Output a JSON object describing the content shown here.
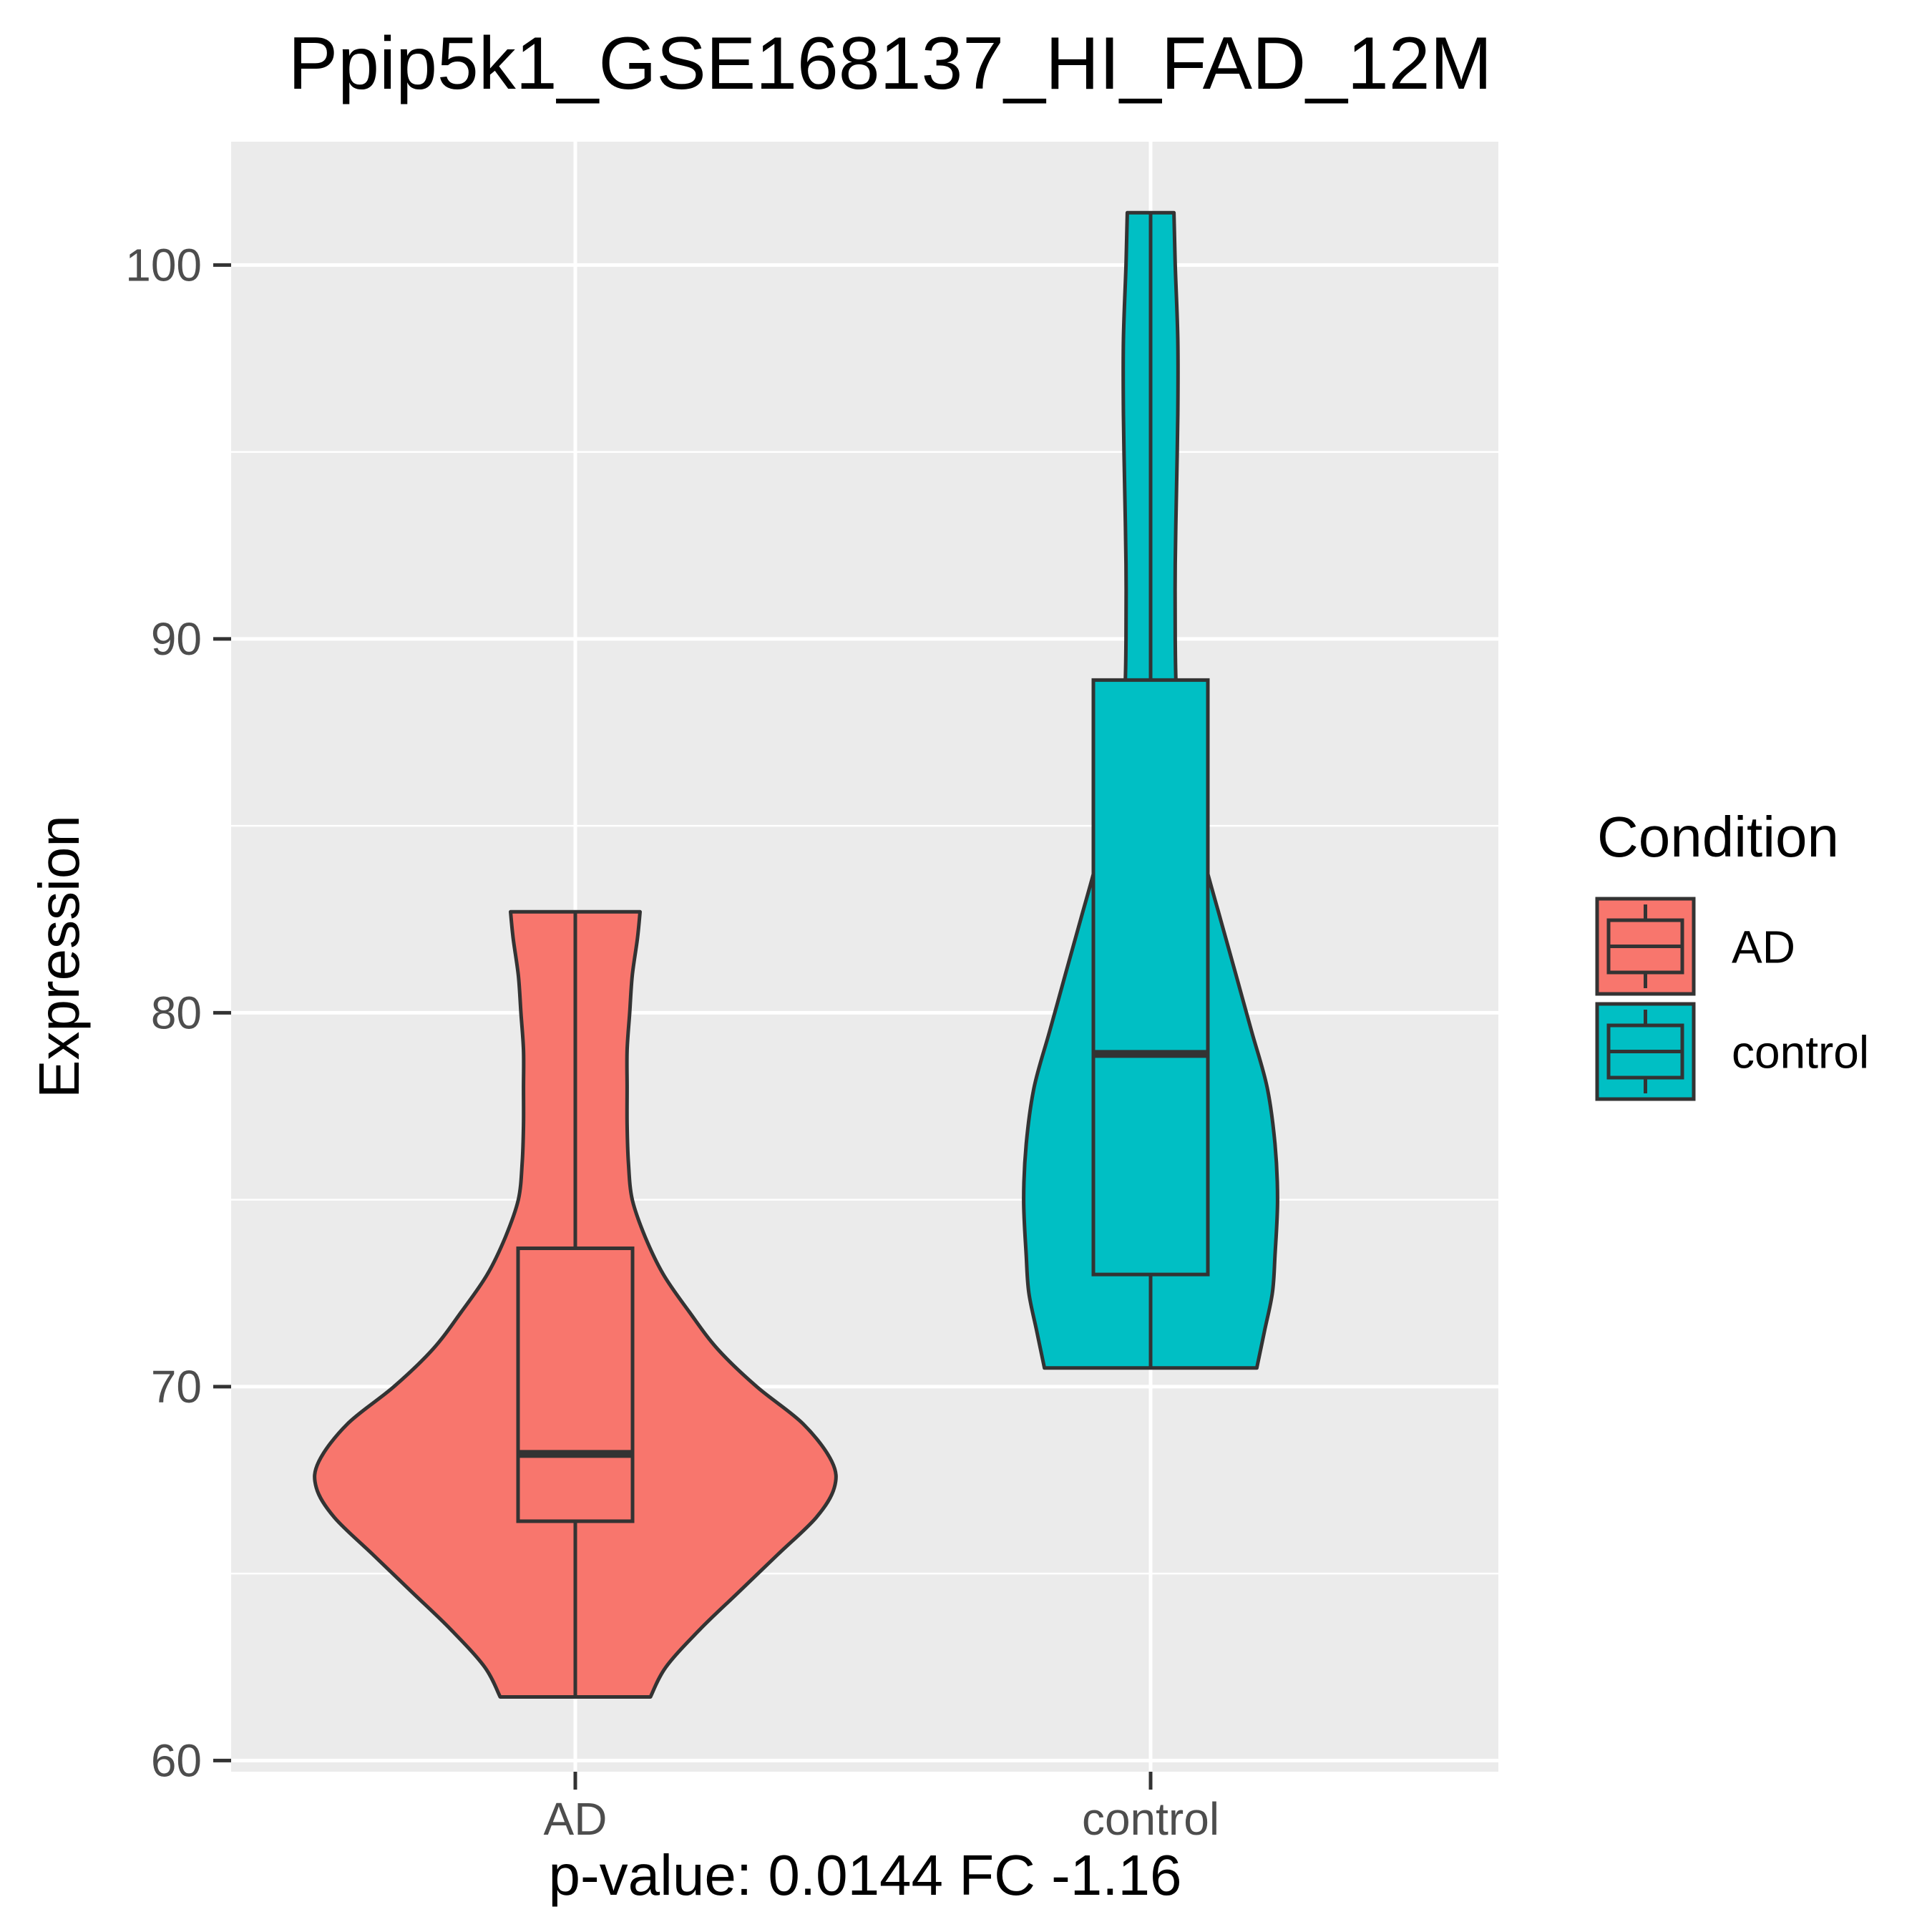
{
  "chart_data": {
    "type": "violin",
    "title": "Ppip5k1_GSE168137_HI_FAD_12M",
    "xlabel": "p-value: 0.0144 FC -1.16",
    "ylabel": "Expression",
    "ylim": [
      59.7,
      103.3
    ],
    "yticks": [
      60,
      70,
      80,
      90,
      100
    ],
    "ytick_labels": [
      "60",
      "70",
      "80",
      "90",
      "100"
    ],
    "grid": true,
    "categories": [
      "AD",
      "control"
    ],
    "legend": {
      "title": "Condition",
      "position": "right",
      "entries": [
        "AD",
        "control"
      ]
    },
    "series": [
      {
        "name": "AD",
        "color": "#F8766D",
        "min": 61.7,
        "q1": 66.4,
        "median": 68.2,
        "q3": 73.7,
        "max": 82.7,
        "density": [
          [
            61.7,
            0.29
          ],
          [
            62.5,
            0.35
          ],
          [
            63.5,
            0.48
          ],
          [
            64.5,
            0.63
          ],
          [
            65.5,
            0.78
          ],
          [
            66.5,
            0.93
          ],
          [
            67.3,
            1.0
          ],
          [
            68.0,
            0.99
          ],
          [
            69.0,
            0.88
          ],
          [
            70.0,
            0.7
          ],
          [
            71.0,
            0.55
          ],
          [
            72.0,
            0.44
          ],
          [
            73.0,
            0.34
          ],
          [
            74.0,
            0.27
          ],
          [
            75.0,
            0.22
          ],
          [
            76.0,
            0.205
          ],
          [
            77.0,
            0.2
          ],
          [
            78.0,
            0.2
          ],
          [
            79.0,
            0.2
          ],
          [
            80.0,
            0.21
          ],
          [
            81.0,
            0.22
          ],
          [
            82.0,
            0.24
          ],
          [
            82.7,
            0.25
          ]
        ]
      },
      {
        "name": "control",
        "color": "#00BFC4",
        "min": 70.5,
        "q1": 73.0,
        "median": 78.9,
        "q3": 88.9,
        "max": 101.4,
        "density": [
          [
            70.5,
            0.41
          ],
          [
            71.5,
            0.44
          ],
          [
            72.5,
            0.47
          ],
          [
            73.5,
            0.48
          ],
          [
            75.0,
            0.49
          ],
          [
            76.5,
            0.48
          ],
          [
            78.0,
            0.45
          ],
          [
            79.5,
            0.39
          ],
          [
            81.0,
            0.33
          ],
          [
            82.5,
            0.27
          ],
          [
            84.0,
            0.21
          ],
          [
            85.5,
            0.16
          ],
          [
            87.0,
            0.12
          ],
          [
            88.5,
            0.1
          ],
          [
            90.0,
            0.095
          ],
          [
            92.0,
            0.095
          ],
          [
            94.0,
            0.1
          ],
          [
            96.0,
            0.105
          ],
          [
            98.0,
            0.105
          ],
          [
            100.0,
            0.095
          ],
          [
            101.4,
            0.09
          ]
        ]
      }
    ]
  }
}
